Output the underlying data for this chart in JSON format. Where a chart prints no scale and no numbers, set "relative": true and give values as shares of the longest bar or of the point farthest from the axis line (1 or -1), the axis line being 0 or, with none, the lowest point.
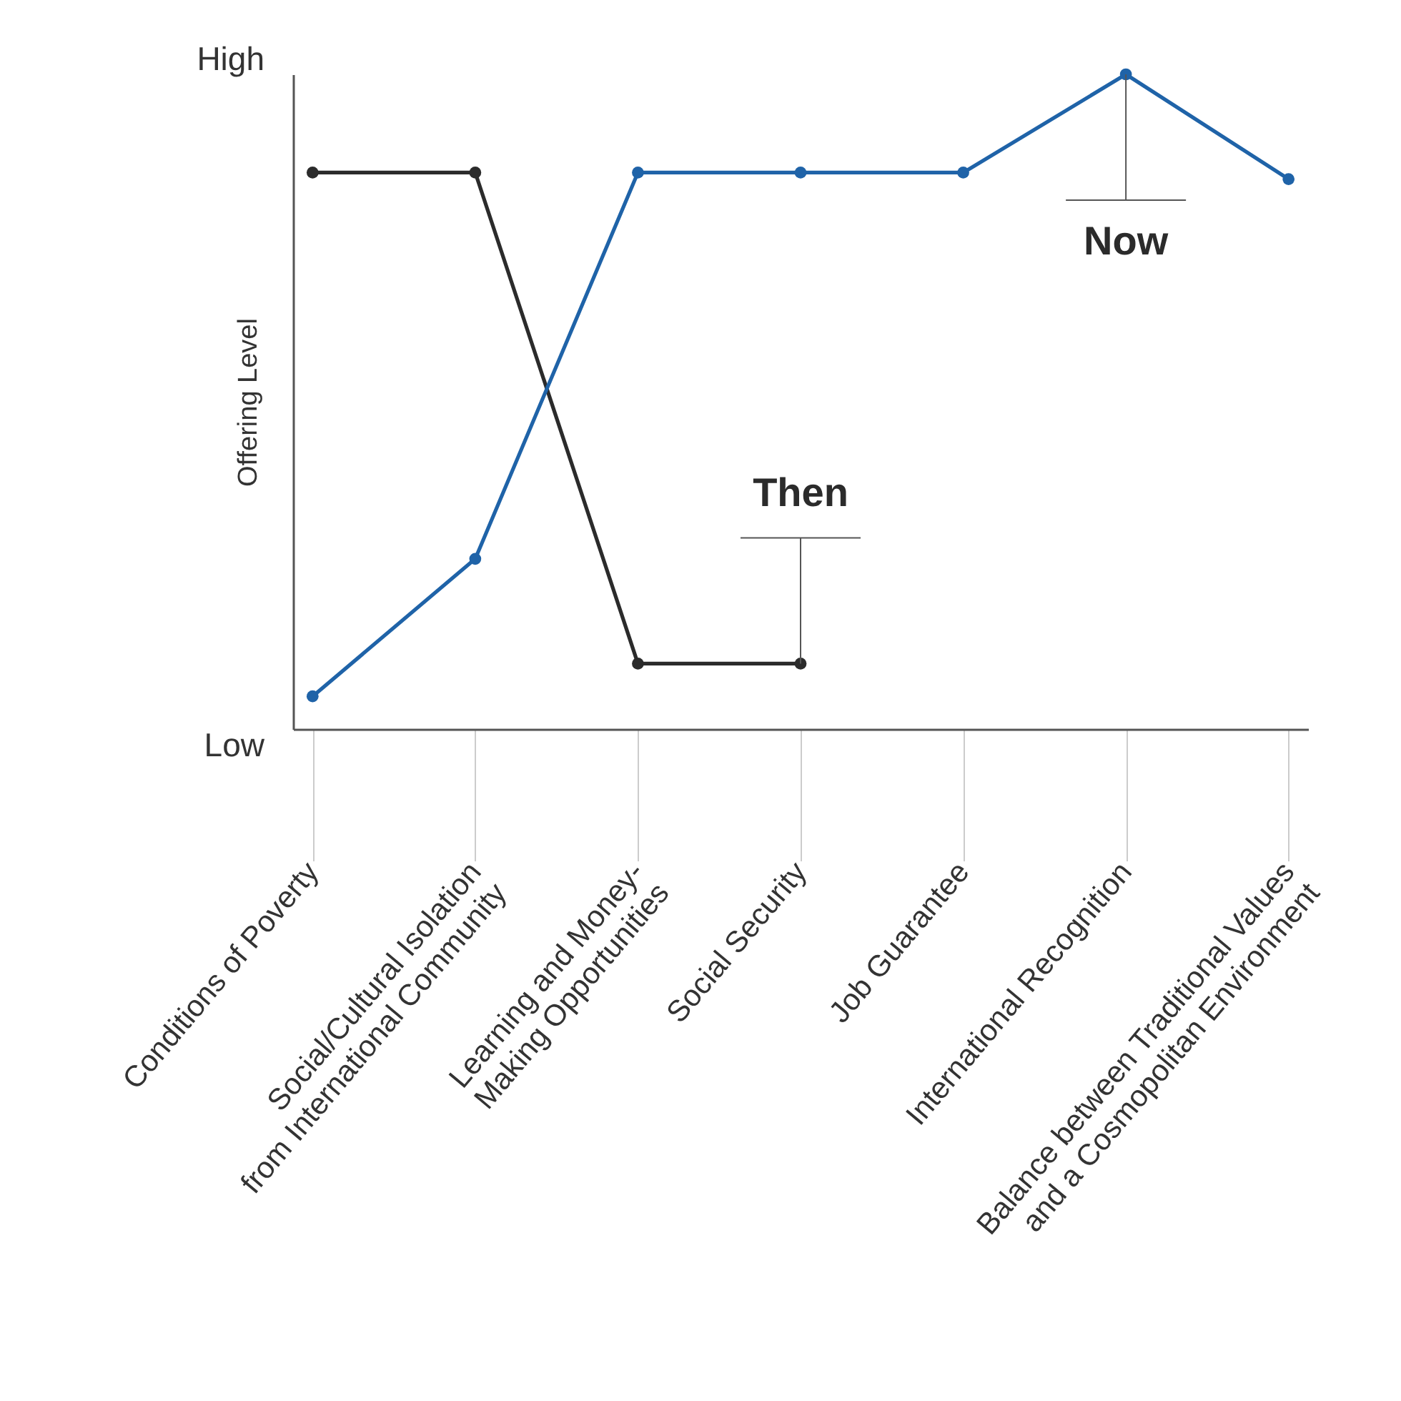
{
  "chart_data": {
    "type": "line",
    "ylabel": "Offering Level",
    "relative": true,
    "categories": [
      "Conditions of Poverty",
      "Social/Cultural Isolation\nfrom International Community",
      "Learning and Money-\nMaking Opportunities",
      "Social Security",
      "Job Guarantee",
      "International Recognition",
      "Balance between Traditional Values\nand a Cosmopolitan Environment"
    ],
    "series": [
      {
        "name": "Then",
        "color": "#2b2b2b",
        "values": [
          0.85,
          0.85,
          0.1,
          0.1,
          null,
          null,
          null
        ]
      },
      {
        "name": "Now",
        "color": "#1f63a8",
        "values": [
          0.05,
          0.26,
          0.85,
          0.85,
          0.85,
          1.0,
          0.84
        ]
      }
    ],
    "marker": "circle",
    "line_style": "solid",
    "annotations": [
      "High",
      "Low"
    ]
  }
}
